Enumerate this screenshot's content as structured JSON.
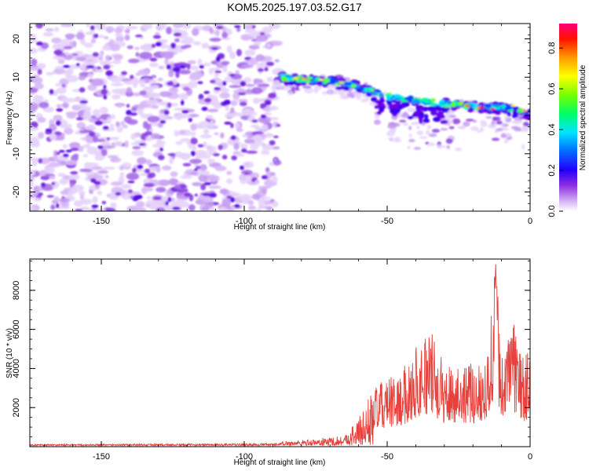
{
  "title": "KOM5.2025.197.03.52.G17",
  "chart_data": [
    {
      "type": "heatmap",
      "xlabel": "Height of straight line (km)",
      "ylabel": "Frequency (Hz)",
      "xlim": [
        -175,
        0
      ],
      "ylim": [
        -25,
        24
      ],
      "xticks": [
        -150,
        -100,
        -50,
        0
      ],
      "yticks": [
        -20,
        -10,
        0,
        10,
        20
      ],
      "colorbar": {
        "label": "Normalized spectral amplitude",
        "range": [
          0,
          0.92
        ],
        "ticks": [
          0.0,
          0.2,
          0.4,
          0.6,
          0.8
        ]
      },
      "noise_region_x": [
        -175,
        -88
      ],
      "signal_track": [
        {
          "x": -88,
          "y": 10
        },
        {
          "x": -80,
          "y": 9.5
        },
        {
          "x": -70,
          "y": 9
        },
        {
          "x": -60,
          "y": 7.5
        },
        {
          "x": -50,
          "y": 5
        },
        {
          "x": -40,
          "y": 4
        },
        {
          "x": -30,
          "y": 3
        },
        {
          "x": -20,
          "y": 2.5
        },
        {
          "x": -10,
          "y": 2
        },
        {
          "x": 0,
          "y": 0.5
        }
      ]
    },
    {
      "type": "line",
      "xlabel": "Height of straight line (km)",
      "ylabel": "SNR (10 * v/v)",
      "xlim": [
        -175,
        0
      ],
      "ylim": [
        0,
        9600
      ],
      "xticks": [
        -150,
        -100,
        -50,
        0
      ],
      "yticks": [
        2000,
        4000,
        6000,
        8000
      ],
      "color": "#e8413c",
      "envelope": [
        {
          "x": -175,
          "y": 80
        },
        {
          "x": -90,
          "y": 120
        },
        {
          "x": -85,
          "y": 300
        },
        {
          "x": -75,
          "y": 400
        },
        {
          "x": -65,
          "y": 600
        },
        {
          "x": -60,
          "y": 1500
        },
        {
          "x": -55,
          "y": 3000
        },
        {
          "x": -50,
          "y": 3500
        },
        {
          "x": -45,
          "y": 3800
        },
        {
          "x": -40,
          "y": 5300
        },
        {
          "x": -35,
          "y": 6100
        },
        {
          "x": -30,
          "y": 4200
        },
        {
          "x": -25,
          "y": 4500
        },
        {
          "x": -20,
          "y": 4200
        },
        {
          "x": -15,
          "y": 5000
        },
        {
          "x": -12,
          "y": 9600
        },
        {
          "x": -10,
          "y": 5200
        },
        {
          "x": -6,
          "y": 6400
        },
        {
          "x": -2,
          "y": 4600
        },
        {
          "x": 0,
          "y": 5000
        }
      ]
    }
  ]
}
